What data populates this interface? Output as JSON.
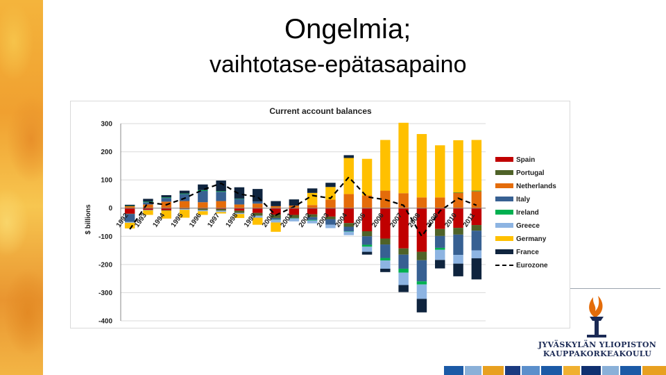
{
  "slide": {
    "title": "Ongelmia;",
    "subtitle": "vaihtotase-epätasapaino"
  },
  "logo": {
    "line1": "JYVÄSKYLÄN YLIOPISTON",
    "line2": "KAUPPAKORKEAKOULU"
  },
  "colors": {
    "Spain": "#c00000",
    "Portugal": "#4f6228",
    "Netherlands": "#e46c0a",
    "Italy": "#376092",
    "Ireland": "#00b050",
    "Greece": "#8db4e2",
    "Germany": "#ffc000",
    "France": "#0f243e",
    "Eurozone": "#000000"
  },
  "chart_data": {
    "type": "bar",
    "stacked": true,
    "title": "Current account balances",
    "ylabel": "$ billions",
    "xlabel": "",
    "ylim": [
      -400,
      300
    ],
    "yticks": [
      300,
      200,
      100,
      0,
      -100,
      -200,
      -300,
      -400
    ],
    "grid": true,
    "legend_position": "right",
    "categories": [
      "1992",
      "1993",
      "1994",
      "1995",
      "1996",
      "1997",
      "1998",
      "1999",
      "2000",
      "2001",
      "2002",
      "2003",
      "2004",
      "2005",
      "2006",
      "2007",
      "2008",
      "2009",
      "2010",
      "2011"
    ],
    "series": [
      {
        "name": "Spain",
        "values": [
          -20,
          -6,
          -7,
          -2,
          -2,
          -3,
          -9,
          -17,
          -23,
          -24,
          -22,
          -30,
          -53,
          -82,
          -108,
          -143,
          -155,
          -74,
          -70,
          -60
        ]
      },
      {
        "name": "Portugal",
        "values": [
          -1,
          -1,
          -2,
          -1,
          -5,
          -6,
          -8,
          -10,
          -12,
          -11,
          -10,
          -9,
          -13,
          -18,
          -21,
          -22,
          -30,
          -25,
          -24,
          -20
        ]
      },
      {
        "name": "Netherlands",
        "values": [
          7,
          13,
          23,
          25,
          21,
          25,
          13,
          16,
          7,
          9,
          11,
          30,
          50,
          45,
          62,
          53,
          38,
          38,
          55,
          60
        ]
      },
      {
        "name": "Italy",
        "values": [
          -28,
          8,
          13,
          25,
          40,
          33,
          20,
          8,
          -5,
          -1,
          -10,
          -20,
          -16,
          -30,
          -48,
          -50,
          -75,
          -42,
          -72,
          -70
        ]
      },
      {
        "name": "Ireland",
        "values": [
          1,
          2,
          2,
          2,
          3,
          2,
          1,
          0,
          -1,
          -1,
          -2,
          0,
          -1,
          -7,
          -9,
          -14,
          -11,
          -7,
          1,
          2
        ]
      },
      {
        "name": "Greece",
        "values": [
          -3,
          -1,
          0,
          -3,
          -4,
          -5,
          -4,
          -7,
          -10,
          -10,
          -10,
          -12,
          -13,
          -18,
          -29,
          -44,
          -51,
          -36,
          -31,
          -28
        ]
      },
      {
        "name": "Germany",
        "values": [
          -20,
          -16,
          -28,
          -28,
          -13,
          -5,
          -14,
          -25,
          -33,
          0,
          43,
          45,
          128,
          130,
          180,
          250,
          225,
          185,
          185,
          180
        ]
      },
      {
        "name": "France",
        "values": [
          4,
          10,
          8,
          10,
          20,
          38,
          40,
          44,
          18,
          22,
          16,
          15,
          10,
          -10,
          -12,
          -25,
          -48,
          -30,
          -45,
          -75
        ]
      }
    ],
    "overlay_line": {
      "name": "Eurozone",
      "style": "dashed",
      "values": [
        -75,
        20,
        12,
        35,
        65,
        88,
        50,
        40,
        -25,
        5,
        45,
        35,
        110,
        40,
        30,
        10,
        -100,
        -10,
        35,
        10
      ]
    },
    "x_tick_labels": [
      "1992",
      "1993",
      "1994",
      "1995",
      "1996",
      "1997",
      "1998",
      "1999",
      "2000",
      "2001",
      "2002",
      "2003",
      "2004",
      "2005",
      "2006",
      "2007",
      "2008",
      "2009",
      "2010",
      "2011"
    ]
  }
}
